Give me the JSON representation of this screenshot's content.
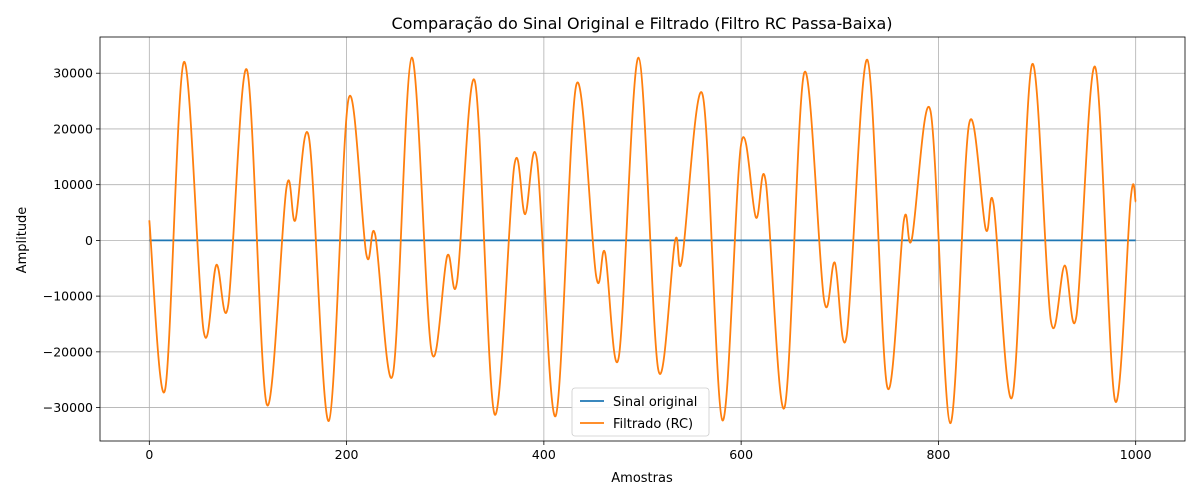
{
  "chart_data": {
    "type": "line",
    "title": "Comparação do Sinal Original e Filtrado (Filtro RC Passa-Baixa)",
    "xlabel": "Amostras",
    "ylabel": "Amplitude",
    "xlim": [
      -50,
      1050
    ],
    "ylim": [
      -36000,
      36500
    ],
    "x_ticks": [
      0,
      200,
      400,
      600,
      800,
      1000
    ],
    "y_ticks": [
      -30000,
      -20000,
      -10000,
      0,
      10000,
      20000,
      30000
    ],
    "grid": true,
    "legend_position": "lower-center",
    "series": [
      {
        "name": "Sinal original",
        "color": "#1f77b4",
        "points": [
          [
            0,
            0
          ],
          [
            1000,
            0
          ]
        ]
      },
      {
        "name": "Filtrado (RC)",
        "color": "#ff7f0e",
        "points": [
          [
            0,
            3600
          ],
          [
            16,
            -26800
          ],
          [
            35,
            32000
          ],
          [
            55,
            -16200
          ],
          [
            68,
            -4400
          ],
          [
            80,
            -11600
          ],
          [
            99,
            30600
          ],
          [
            119,
            -29400
          ],
          [
            139,
            9400
          ],
          [
            148,
            3600
          ],
          [
            162,
            18300
          ],
          [
            182,
            -32400
          ],
          [
            202,
            25400
          ],
          [
            220,
            -2500
          ],
          [
            229,
            1000
          ],
          [
            247,
            -24000
          ],
          [
            266,
            32800
          ],
          [
            286,
            -19800
          ],
          [
            302,
            -2800
          ],
          [
            312,
            -7400
          ],
          [
            330,
            28600
          ],
          [
            350,
            -31200
          ],
          [
            370,
            13400
          ],
          [
            381,
            4700
          ],
          [
            393,
            14500
          ],
          [
            412,
            -31500
          ],
          [
            433,
            28000
          ],
          [
            453,
            -6400
          ],
          [
            462,
            -2200
          ],
          [
            476,
            -20900
          ],
          [
            496,
            32800
          ],
          [
            516,
            -23200
          ],
          [
            533,
            -100
          ],
          [
            540,
            -3600
          ],
          [
            561,
            26100
          ],
          [
            581,
            -32300
          ],
          [
            600,
            17300
          ],
          [
            615,
            4100
          ],
          [
            625,
            10500
          ],
          [
            644,
            -30000
          ],
          [
            664,
            30100
          ],
          [
            684,
            -10600
          ],
          [
            695,
            -4000
          ],
          [
            707,
            -17100
          ],
          [
            728,
            32400
          ],
          [
            748,
            -26200
          ],
          [
            765,
            3600
          ],
          [
            773,
            200
          ],
          [
            792,
            23200
          ],
          [
            812,
            -32800
          ],
          [
            831,
            20800
          ],
          [
            848,
            2000
          ],
          [
            856,
            6400
          ],
          [
            875,
            -28000
          ],
          [
            895,
            31600
          ],
          [
            914,
            -14400
          ],
          [
            928,
            -4500
          ],
          [
            940,
            -13500
          ],
          [
            959,
            31100
          ],
          [
            979,
            -28700
          ],
          [
            995,
            7600
          ],
          [
            1000,
            6900
          ]
        ]
      }
    ]
  }
}
